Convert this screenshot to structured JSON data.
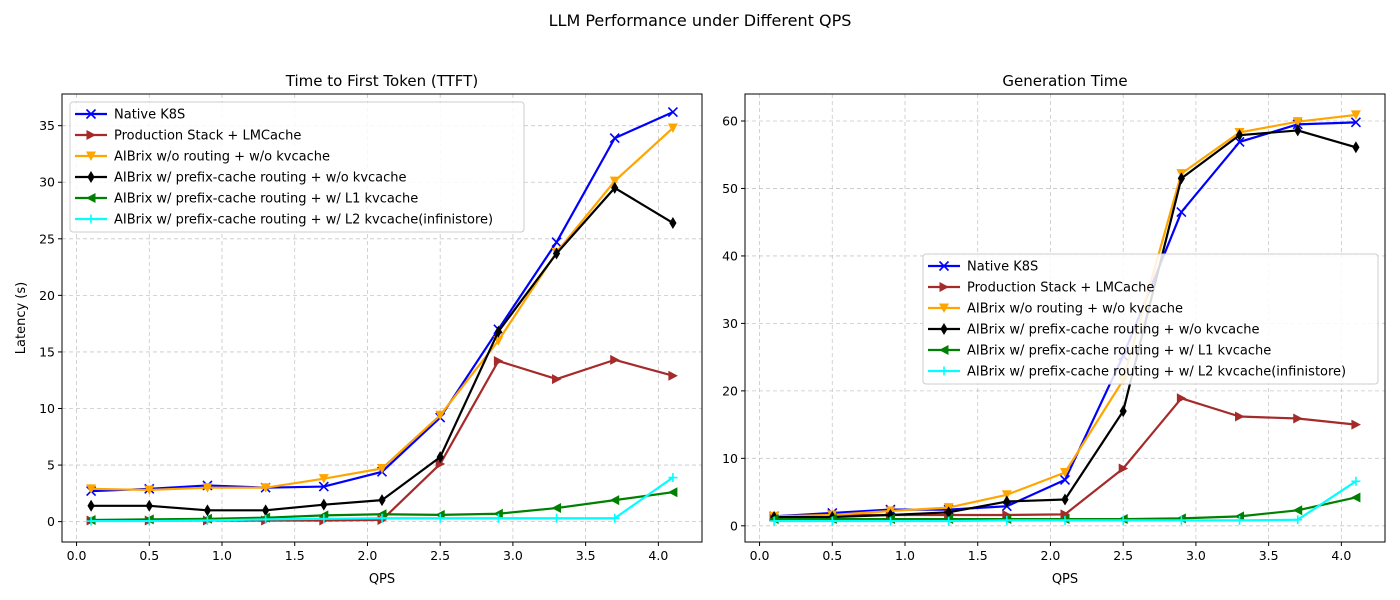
{
  "suptitle": "LLM Performance under Different QPS",
  "chart_data": [
    {
      "type": "line",
      "title": "Time to First Token (TTFT)",
      "xlabel": "QPS",
      "ylabel": "Latency (s)",
      "xlim": [
        -0.1,
        4.3
      ],
      "ylim": [
        -1.8,
        37.8
      ],
      "xticks": [
        "0.0",
        "0.5",
        "1.0",
        "1.5",
        "2.0",
        "2.5",
        "3.0",
        "3.5",
        "4.0"
      ],
      "yticks": [
        "0",
        "5",
        "10",
        "15",
        "20",
        "25",
        "30",
        "35"
      ],
      "grid": true,
      "legend_position": "upper-left",
      "x": [
        0.1,
        0.5,
        0.9,
        1.3,
        1.7,
        2.1,
        2.5,
        2.9,
        3.3,
        3.7,
        4.1
      ],
      "series": [
        {
          "name": "Native K8S",
          "color": "#0000ff",
          "marker": "x",
          "values": [
            2.7,
            2.9,
            3.2,
            3.0,
            3.1,
            4.4,
            9.2,
            17.0,
            24.7,
            33.9,
            36.2
          ]
        },
        {
          "name": "Production Stack + LMCache",
          "color": "#a52a2a",
          "marker": "triangle-right",
          "values": [
            0.1,
            0.1,
            0.1,
            0.1,
            0.1,
            0.15,
            5.1,
            14.2,
            12.6,
            14.3,
            12.9
          ]
        },
        {
          "name": "AIBrix w/o routing + w/o kvcache",
          "color": "#ffa500",
          "marker": "triangle-down",
          "values": [
            2.9,
            2.8,
            3.0,
            3.0,
            3.8,
            4.7,
            9.4,
            16.0,
            23.8,
            30.1,
            34.8
          ]
        },
        {
          "name": "AIBrix w/ prefix-cache routing + w/o kvcache",
          "color": "#000000",
          "marker": "thin-diamond",
          "values": [
            1.4,
            1.4,
            1.0,
            1.0,
            1.5,
            1.9,
            5.7,
            16.8,
            23.7,
            29.5,
            26.4
          ]
        },
        {
          "name": "AIBrix w/ prefix-cache routing + w/ L1 kvcache",
          "color": "#008000",
          "marker": "triangle-left",
          "values": [
            0.15,
            0.2,
            0.25,
            0.35,
            0.55,
            0.65,
            0.6,
            0.7,
            1.2,
            1.9,
            2.6
          ]
        },
        {
          "name": "AIBrix w/ prefix-cache routing + w/ L2 kvcache(infinistore)",
          "color": "#00ffff",
          "marker": "plus",
          "values": [
            0.05,
            0.05,
            0.1,
            0.2,
            0.25,
            0.3,
            0.3,
            0.3,
            0.3,
            0.3,
            3.9
          ]
        }
      ]
    },
    {
      "type": "line",
      "title": "Generation Time",
      "xlabel": "QPS",
      "ylabel": "",
      "xlim": [
        -0.1,
        4.3
      ],
      "ylim": [
        -2.4,
        64.0
      ],
      "xticks": [
        "0.0",
        "0.5",
        "1.0",
        "1.5",
        "2.0",
        "2.5",
        "3.0",
        "3.5",
        "4.0"
      ],
      "yticks": [
        "0",
        "10",
        "20",
        "30",
        "40",
        "50",
        "60"
      ],
      "grid": true,
      "legend_position": "center-right",
      "x": [
        0.1,
        0.5,
        0.9,
        1.3,
        1.7,
        2.1,
        2.5,
        2.9,
        3.3,
        3.7,
        4.1
      ],
      "series": [
        {
          "name": "Native K8S",
          "color": "#0000ff",
          "marker": "x",
          "values": [
            1.4,
            1.9,
            2.4,
            2.4,
            2.9,
            6.8,
            25.2,
            46.5,
            56.9,
            59.5,
            59.8
          ]
        },
        {
          "name": "Production Stack + LMCache",
          "color": "#a52a2a",
          "marker": "triangle-right",
          "values": [
            1.4,
            1.6,
            1.6,
            1.6,
            1.6,
            1.7,
            8.5,
            18.9,
            16.2,
            15.9,
            15.0
          ]
        },
        {
          "name": "AIBrix w/o routing + w/o kvcache",
          "color": "#ffa500",
          "marker": "triangle-down",
          "values": [
            1.4,
            1.6,
            2.2,
            2.7,
            4.6,
            7.9,
            21.6,
            52.2,
            58.3,
            59.9,
            60.9
          ]
        },
        {
          "name": "AIBrix w/ prefix-cache routing + w/o kvcache",
          "color": "#000000",
          "marker": "thin-diamond",
          "values": [
            1.3,
            1.3,
            1.6,
            2.0,
            3.6,
            3.9,
            17.0,
            51.5,
            57.9,
            58.6,
            56.1
          ]
        },
        {
          "name": "AIBrix w/ prefix-cache routing + w/ L1 kvcache",
          "color": "#008000",
          "marker": "triangle-left",
          "values": [
            1.0,
            1.0,
            1.0,
            1.0,
            1.0,
            1.0,
            1.0,
            1.1,
            1.4,
            2.3,
            4.2
          ]
        },
        {
          "name": "AIBrix w/ prefix-cache routing + w/ L2 kvcache(infinistore)",
          "color": "#00ffff",
          "marker": "plus",
          "values": [
            0.7,
            0.7,
            0.7,
            0.7,
            0.8,
            0.8,
            0.8,
            0.8,
            0.8,
            0.9,
            6.6
          ]
        }
      ]
    }
  ]
}
